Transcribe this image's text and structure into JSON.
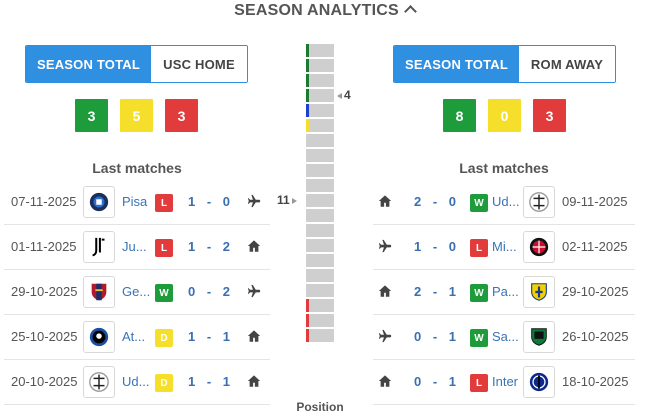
{
  "header": {
    "title": "SEASON ANALYTICS",
    "chevron_icon": "chevron-up-icon"
  },
  "left": {
    "tabs": [
      "SEASON TOTAL",
      "USC HOME"
    ],
    "active_tab": 0,
    "counts": {
      "wins": "3",
      "draws": "5",
      "losses": "3"
    },
    "last_matches_label": "Last matches",
    "matches": [
      {
        "date": "07-11-2025",
        "team": "Pisa",
        "logo_icon": "pisa-crest-icon",
        "result": "L",
        "home_score": "1",
        "away_score": "0",
        "venue_icon": "plane-icon"
      },
      {
        "date": "01-11-2025",
        "team": "Ju...",
        "logo_icon": "juventus-crest-icon",
        "result": "L",
        "home_score": "1",
        "away_score": "2",
        "venue_icon": "home-icon"
      },
      {
        "date": "29-10-2025",
        "team": "Ge...",
        "logo_icon": "genoa-crest-icon",
        "result": "W",
        "home_score": "0",
        "away_score": "2",
        "venue_icon": "plane-icon"
      },
      {
        "date": "25-10-2025",
        "team": "At...",
        "logo_icon": "atalanta-crest-icon",
        "result": "D",
        "home_score": "1",
        "away_score": "1",
        "venue_icon": "home-icon"
      },
      {
        "date": "20-10-2025",
        "team": "Ud...",
        "logo_icon": "udinese-crest-icon",
        "result": "D",
        "home_score": "1",
        "away_score": "1",
        "venue_icon": "home-icon"
      }
    ]
  },
  "right": {
    "tabs": [
      "SEASON TOTAL",
      "ROM AWAY"
    ],
    "active_tab": 0,
    "counts": {
      "wins": "8",
      "draws": "0",
      "losses": "3"
    },
    "last_matches_label": "Last matches",
    "matches": [
      {
        "date": "09-11-2025",
        "team": "Ud...",
        "logo_icon": "udinese-crest-icon",
        "result": "W",
        "home_score": "2",
        "away_score": "0",
        "venue_icon": "home-icon"
      },
      {
        "date": "02-11-2025",
        "team": "Mi...",
        "logo_icon": "milan-crest-icon",
        "result": "L",
        "home_score": "1",
        "away_score": "0",
        "venue_icon": "plane-icon"
      },
      {
        "date": "29-10-2025",
        "team": "Pa...",
        "logo_icon": "parma-crest-icon",
        "result": "W",
        "home_score": "2",
        "away_score": "1",
        "venue_icon": "home-icon"
      },
      {
        "date": "26-10-2025",
        "team": "Sa...",
        "logo_icon": "sassuolo-crest-icon",
        "result": "W",
        "home_score": "0",
        "away_score": "1",
        "venue_icon": "plane-icon"
      },
      {
        "date": "18-10-2025",
        "team": "Inter",
        "logo_icon": "inter-crest-icon",
        "result": "L",
        "home_score": "0",
        "away_score": "1",
        "venue_icon": "home-icon"
      }
    ]
  },
  "position": {
    "label": "Position",
    "total_positions": 20,
    "left_team_position": "11",
    "right_team_position": "4",
    "zone_markers": [
      {
        "position": 1,
        "color": "#1a7a2e"
      },
      {
        "position": 2,
        "color": "#1a7a2e"
      },
      {
        "position": 3,
        "color": "#1a7a2e"
      },
      {
        "position": 4,
        "color": "#1a7a2e"
      },
      {
        "position": 5,
        "color": "#1f3fcf"
      },
      {
        "position": 6,
        "color": "#f6df2a"
      },
      {
        "position": 18,
        "color": "#e23b3b"
      },
      {
        "position": 19,
        "color": "#e23b3b"
      },
      {
        "position": 20,
        "color": "#e23b3b"
      }
    ]
  },
  "colors": {
    "accent": "#2f8fe0",
    "win": "#1e9b3a",
    "draw": "#f6df2a",
    "loss": "#e23b3b",
    "link": "#3973b6"
  }
}
